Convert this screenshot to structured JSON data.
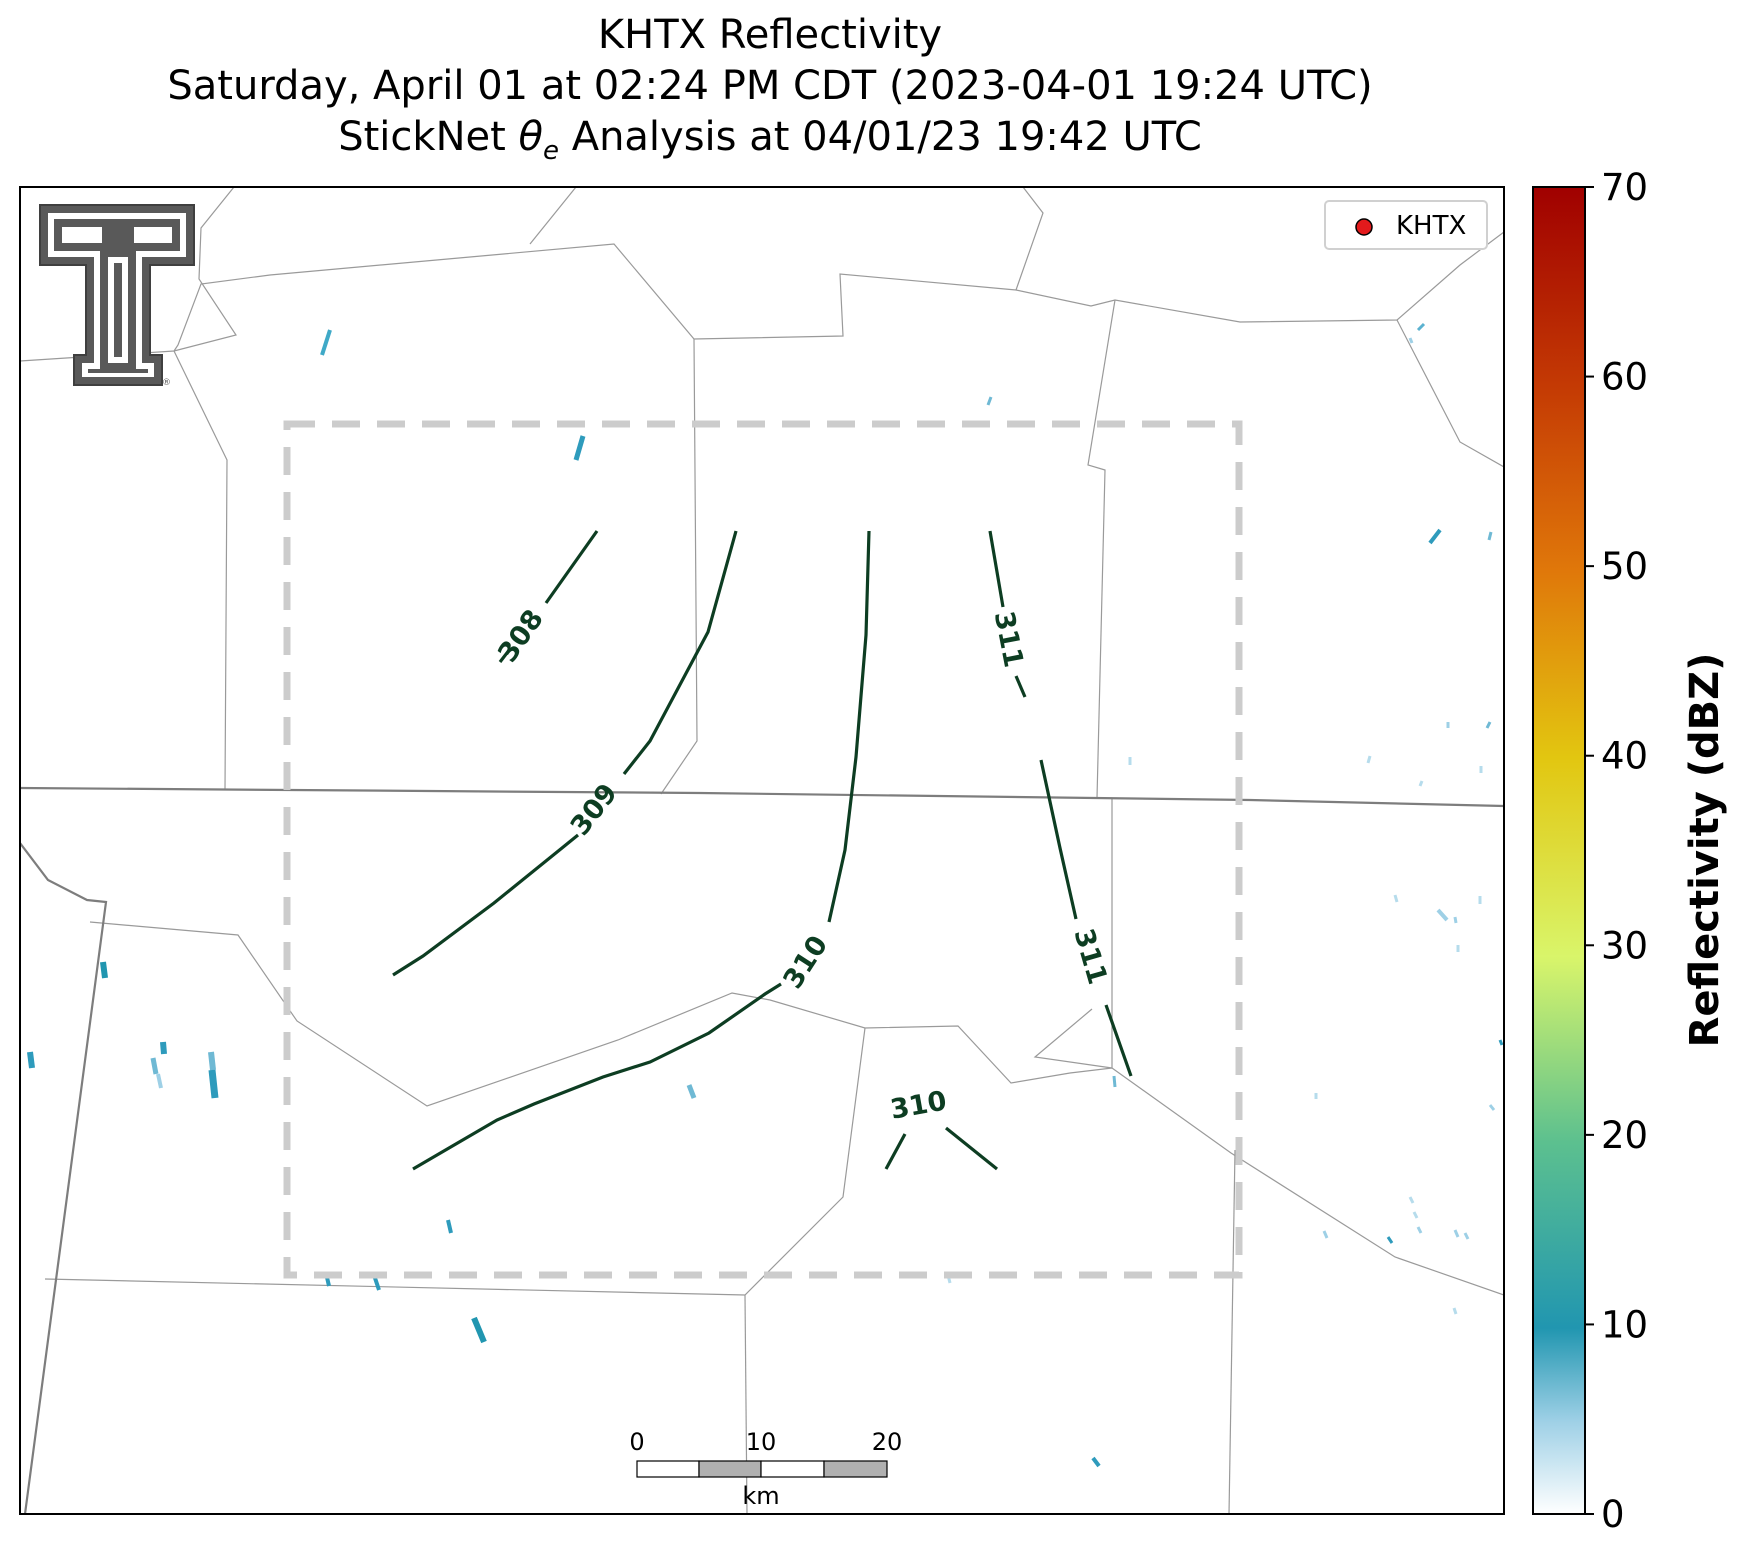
{
  "title": {
    "line1": "KHTX Reflectivity",
    "line2": "Saturday, April 01 at 02:24 PM CDT (2023-04-01 19:24 UTC)",
    "line3_prefix": "StickNet ",
    "line3_theta": "θ",
    "line3_sub": "e",
    "line3_suffix": " Analysis at 04/01/23 19:42 UTC"
  },
  "legend": {
    "station_label": "KHTX",
    "marker_color": "#e31a1c"
  },
  "colorbar": {
    "label": "Reflectivity (dBZ)",
    "ticks": [
      0,
      10,
      20,
      30,
      40,
      50,
      60,
      70
    ],
    "range": [
      0,
      70
    ],
    "colors": [
      "#ffffff",
      "#9ed0e6",
      "#2196b0",
      "#5cc08f",
      "#d9f56a",
      "#e2c610",
      "#e0780a",
      "#a00000"
    ]
  },
  "contours": {
    "color": "#0d3d22",
    "labels": [
      "308",
      "309",
      "310",
      "311",
      "311",
      "310"
    ]
  },
  "scale_bar": {
    "ticks": [
      "0",
      "10",
      "20"
    ],
    "unit": "km"
  },
  "logo": {
    "text": "T"
  }
}
